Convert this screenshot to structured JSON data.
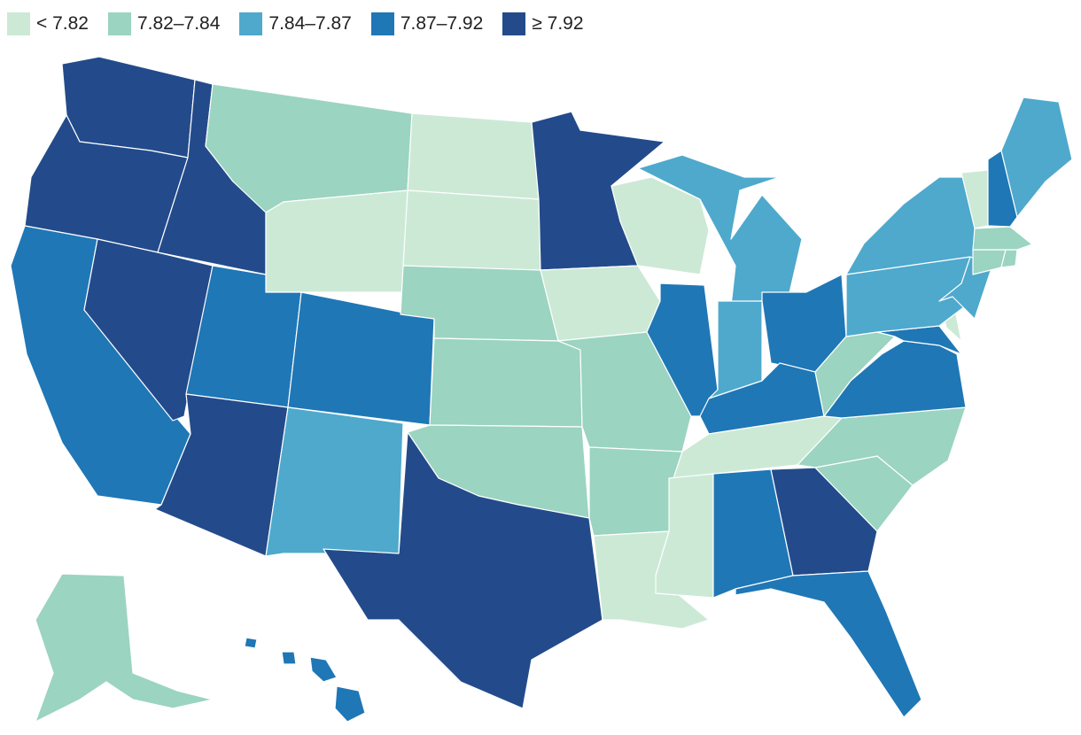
{
  "legend": [
    {
      "label": "< 7.82",
      "color": "#cce9d6"
    },
    {
      "label": "7.82–7.84",
      "color": "#9bd4c1"
    },
    {
      "label": "7.84–7.87",
      "color": "#4ea9cc"
    },
    {
      "label": "7.87–7.92",
      "color": "#1f77b6"
    },
    {
      "label": "≥ 7.92",
      "color": "#234b8b"
    }
  ],
  "states": [
    {
      "name": "Washington",
      "abbr": "WA",
      "bin": 4
    },
    {
      "name": "Oregon",
      "abbr": "OR",
      "bin": 4
    },
    {
      "name": "California",
      "abbr": "CA",
      "bin": 3
    },
    {
      "name": "Nevada",
      "abbr": "NV",
      "bin": 4
    },
    {
      "name": "Idaho",
      "abbr": "ID",
      "bin": 4
    },
    {
      "name": "Montana",
      "abbr": "MT",
      "bin": 1
    },
    {
      "name": "Wyoming",
      "abbr": "WY",
      "bin": 0
    },
    {
      "name": "Utah",
      "abbr": "UT",
      "bin": 3
    },
    {
      "name": "Arizona",
      "abbr": "AZ",
      "bin": 4
    },
    {
      "name": "Colorado",
      "abbr": "CO",
      "bin": 3
    },
    {
      "name": "New Mexico",
      "abbr": "NM",
      "bin": 2
    },
    {
      "name": "North Dakota",
      "abbr": "ND",
      "bin": 0
    },
    {
      "name": "South Dakota",
      "abbr": "SD",
      "bin": 0
    },
    {
      "name": "Nebraska",
      "abbr": "NE",
      "bin": 1
    },
    {
      "name": "Kansas",
      "abbr": "KS",
      "bin": 1
    },
    {
      "name": "Oklahoma",
      "abbr": "OK",
      "bin": 1
    },
    {
      "name": "Texas",
      "abbr": "TX",
      "bin": 4
    },
    {
      "name": "Minnesota",
      "abbr": "MN",
      "bin": 4
    },
    {
      "name": "Iowa",
      "abbr": "IA",
      "bin": 0
    },
    {
      "name": "Missouri",
      "abbr": "MO",
      "bin": 1
    },
    {
      "name": "Arkansas",
      "abbr": "AR",
      "bin": 1
    },
    {
      "name": "Louisiana",
      "abbr": "LA",
      "bin": 0
    },
    {
      "name": "Wisconsin",
      "abbr": "WI",
      "bin": 0
    },
    {
      "name": "Illinois",
      "abbr": "IL",
      "bin": 3
    },
    {
      "name": "Michigan",
      "abbr": "MI",
      "bin": 2
    },
    {
      "name": "Indiana",
      "abbr": "IN",
      "bin": 2
    },
    {
      "name": "Ohio",
      "abbr": "OH",
      "bin": 3
    },
    {
      "name": "Kentucky",
      "abbr": "KY",
      "bin": 3
    },
    {
      "name": "Tennessee",
      "abbr": "TN",
      "bin": 0
    },
    {
      "name": "Mississippi",
      "abbr": "MS",
      "bin": 0
    },
    {
      "name": "Alabama",
      "abbr": "AL",
      "bin": 3
    },
    {
      "name": "Georgia",
      "abbr": "GA",
      "bin": 4
    },
    {
      "name": "Florida",
      "abbr": "FL",
      "bin": 3
    },
    {
      "name": "South Carolina",
      "abbr": "SC",
      "bin": 1
    },
    {
      "name": "North Carolina",
      "abbr": "NC",
      "bin": 1
    },
    {
      "name": "Virginia",
      "abbr": "VA",
      "bin": 3
    },
    {
      "name": "West Virginia",
      "abbr": "WV",
      "bin": 1
    },
    {
      "name": "Maryland",
      "abbr": "MD",
      "bin": 3
    },
    {
      "name": "Delaware",
      "abbr": "DE",
      "bin": 0
    },
    {
      "name": "Pennsylvania",
      "abbr": "PA",
      "bin": 2
    },
    {
      "name": "New Jersey",
      "abbr": "NJ",
      "bin": 2
    },
    {
      "name": "New York",
      "abbr": "NY",
      "bin": 2
    },
    {
      "name": "Connecticut",
      "abbr": "CT",
      "bin": 1
    },
    {
      "name": "Rhode Island",
      "abbr": "RI",
      "bin": 1
    },
    {
      "name": "Massachusetts",
      "abbr": "MA",
      "bin": 1
    },
    {
      "name": "Vermont",
      "abbr": "VT",
      "bin": 0
    },
    {
      "name": "New Hampshire",
      "abbr": "NH",
      "bin": 3
    },
    {
      "name": "Maine",
      "abbr": "ME",
      "bin": 2
    },
    {
      "name": "Alaska",
      "abbr": "AK",
      "bin": 1
    },
    {
      "name": "Hawaii",
      "abbr": "HI",
      "bin": 3
    }
  ]
}
